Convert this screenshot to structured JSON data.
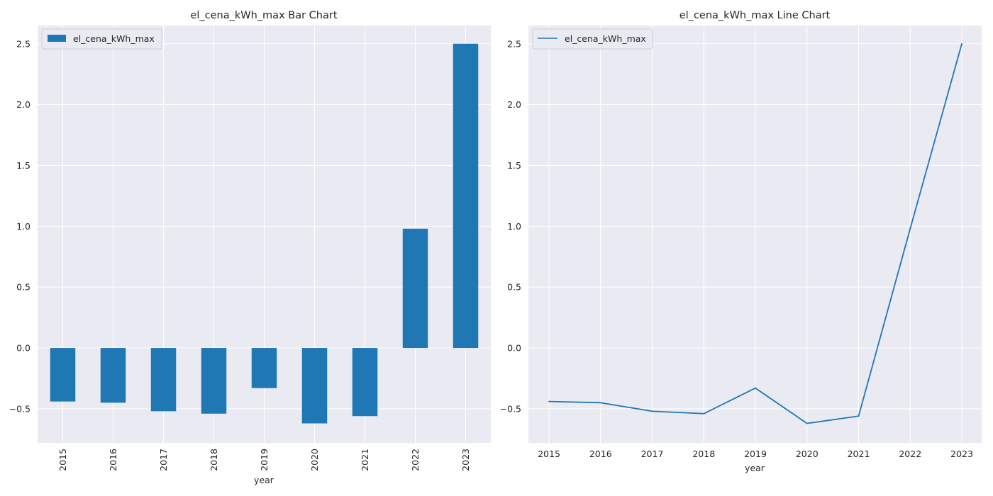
{
  "chart_data": [
    {
      "type": "bar",
      "title": "el_cena_kWh_max Bar Chart",
      "xlabel": "year",
      "ylabel": "",
      "categories": [
        "2015",
        "2016",
        "2017",
        "2018",
        "2019",
        "2020",
        "2021",
        "2022",
        "2023"
      ],
      "series": [
        {
          "name": "el_cena_kWh_max",
          "values": [
            -0.44,
            -0.45,
            -0.52,
            -0.54,
            -0.33,
            -0.62,
            -0.56,
            0.98,
            2.5
          ]
        }
      ],
      "ylim": [
        -0.78,
        2.65
      ],
      "yticks": [
        -0.5,
        0.0,
        0.5,
        1.0,
        1.5,
        2.0,
        2.5
      ],
      "ytick_labels": [
        "−0.5",
        "0.0",
        "0.5",
        "1.0",
        "1.5",
        "2.0",
        "2.5"
      ],
      "xtick_rotation": "vertical",
      "grid": true,
      "legend_position": "upper-left",
      "color": "#1f77b4"
    },
    {
      "type": "line",
      "title": "el_cena_kWh_max Line Chart",
      "xlabel": "year",
      "ylabel": "",
      "categories": [
        "2015",
        "2016",
        "2017",
        "2018",
        "2019",
        "2020",
        "2021",
        "2022",
        "2023"
      ],
      "series": [
        {
          "name": "el_cena_kWh_max",
          "values": [
            -0.44,
            -0.45,
            -0.52,
            -0.54,
            -0.33,
            -0.62,
            -0.56,
            0.98,
            2.5
          ]
        }
      ],
      "ylim": [
        -0.78,
        2.65
      ],
      "yticks": [
        -0.5,
        0.0,
        0.5,
        1.0,
        1.5,
        2.0,
        2.5
      ],
      "ytick_labels": [
        "−0.5",
        "0.0",
        "0.5",
        "1.0",
        "1.5",
        "2.0",
        "2.5"
      ],
      "xtick_rotation": "horizontal",
      "grid": true,
      "legend_position": "upper-left",
      "color": "#1f77b4"
    }
  ],
  "style": {
    "plot_background": "#eaeaf2",
    "grid_color": "#ffffff",
    "text_color": "#262626",
    "figure_background": "#ffffff"
  }
}
